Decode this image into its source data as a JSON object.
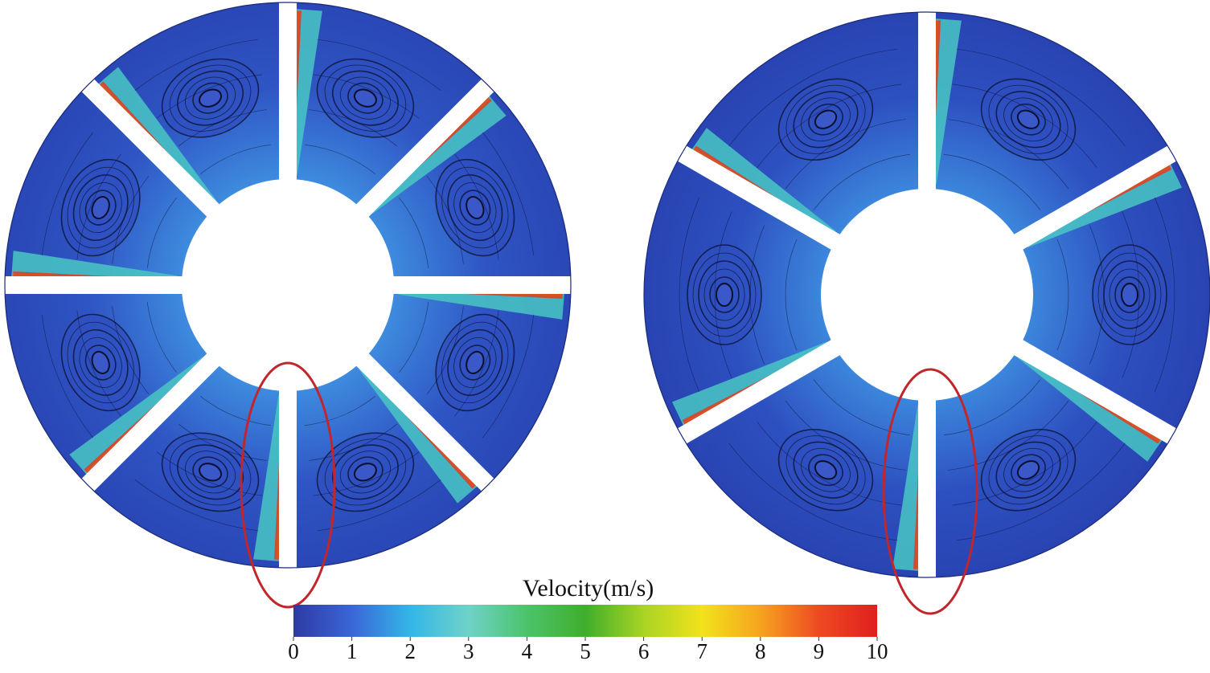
{
  "colorbar": {
    "title": "Velocity(m/s)",
    "min": 0,
    "max": 10,
    "ticks": [
      "0",
      "1",
      "2",
      "3",
      "4",
      "5",
      "6",
      "7",
      "8",
      "9",
      "10"
    ],
    "colors": [
      "#2e3aa3",
      "#3b66d6",
      "#33b6e8",
      "#6fd2c8",
      "#4cc36a",
      "#3fae2c",
      "#a9d423",
      "#f2e21b",
      "#f6a31f",
      "#ee4a22",
      "#e01f1f"
    ]
  },
  "figure": {
    "panels": [
      {
        "name": "left-wheel",
        "blades": 8,
        "blade_offset_deg": 0,
        "highlight": "bottom blade"
      },
      {
        "name": "right-wheel",
        "blades": 6,
        "blade_offset_deg": 0,
        "highlight": "bottom blade"
      }
    ],
    "field_colors": {
      "low": "#2c44b8",
      "mid_low": "#2f8fdc",
      "mid": "#49c7c3",
      "high": "#9fd23a",
      "peak": "#e33b1f"
    },
    "highlight_color": "#c0262c",
    "streamline_color": "#0b0f2e"
  }
}
